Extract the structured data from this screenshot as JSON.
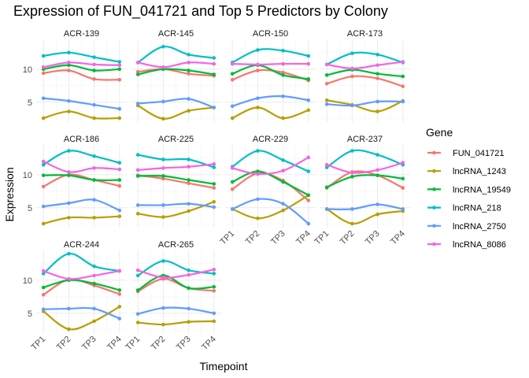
{
  "chart_data": {
    "type": "line",
    "title": "Expression of FUN_041721 and Top 5 Predictors by Colony",
    "xlabel": "Timepoint",
    "ylabel": "Expression",
    "x": [
      "TP1",
      "TP2",
      "TP3",
      "TP4"
    ],
    "y_ticks": [
      5,
      10
    ],
    "ylim": [
      2,
      14.5
    ],
    "legend_title": "Gene",
    "legend_position": "right",
    "grid": true,
    "genes": [
      {
        "name": "FUN_041721",
        "color": "#F8766D"
      },
      {
        "name": "lncRNA_1243",
        "color": "#B79F00"
      },
      {
        "name": "lncRNA_19549",
        "color": "#00BA38"
      },
      {
        "name": "lncRNA_218",
        "color": "#00BFC4"
      },
      {
        "name": "lncRNA_2750",
        "color": "#619CFF"
      },
      {
        "name": "lncRNA_8086",
        "color": "#F564E3"
      }
    ],
    "panels": [
      {
        "colony": "ACR-139",
        "values": {
          "FUN_041721": [
            9.4,
            9.8,
            8.5,
            8.4
          ],
          "lncRNA_1243": [
            2.6,
            3.6,
            2.6,
            2.6
          ],
          "lncRNA_19549": [
            10.0,
            10.6,
            9.8,
            10.0
          ],
          "lncRNA_218": [
            12.0,
            12.5,
            11.8,
            11.1
          ],
          "lncRNA_2750": [
            5.6,
            5.2,
            4.6,
            4.0
          ],
          "lncRNA_8086": [
            10.3,
            11.0,
            10.7,
            10.6
          ]
        }
      },
      {
        "colony": "ACR-145",
        "values": {
          "FUN_041721": [
            9.6,
            10.0,
            9.3,
            9.0
          ],
          "lncRNA_1243": [
            4.5,
            2.5,
            3.7,
            4.2
          ],
          "lncRNA_19549": [
            9.2,
            10.0,
            9.8,
            9.2
          ],
          "lncRNA_218": [
            11.0,
            13.4,
            12.2,
            11.7
          ],
          "lncRNA_2750": [
            4.8,
            5.1,
            5.5,
            4.2
          ],
          "lncRNA_8086": [
            11.0,
            10.3,
            11.0,
            10.8
          ]
        }
      },
      {
        "colony": "ACR-150",
        "values": {
          "FUN_041721": [
            8.4,
            9.8,
            9.5,
            8.3
          ],
          "lncRNA_1243": [
            2.6,
            4.2,
            2.6,
            3.8
          ],
          "lncRNA_19549": [
            9.3,
            10.6,
            9.1,
            8.5
          ],
          "lncRNA_218": [
            11.0,
            12.9,
            12.8,
            12.0
          ],
          "lncRNA_2750": [
            4.4,
            5.6,
            5.9,
            5.3
          ],
          "lncRNA_8086": [
            10.8,
            10.7,
            10.8,
            10.8
          ]
        }
      },
      {
        "colony": "ACR-173",
        "values": {
          "FUN_041721": [
            7.8,
            8.9,
            8.6,
            7.4
          ],
          "lncRNA_1243": [
            5.3,
            4.6,
            3.6,
            5.2
          ],
          "lncRNA_19549": [
            9.1,
            9.9,
            9.3,
            8.9
          ],
          "lncRNA_218": [
            10.7,
            12.4,
            12.2,
            11.0
          ],
          "lncRNA_2750": [
            4.7,
            4.5,
            5.1,
            5.1
          ],
          "lncRNA_8086": [
            10.7,
            10.1,
            10.6,
            11.1
          ]
        }
      },
      {
        "colony": "ACR-186",
        "values": {
          "FUN_041721": [
            8.2,
            10.0,
            9.2,
            8.3
          ],
          "lncRNA_1243": [
            2.6,
            3.5,
            3.5,
            3.7
          ],
          "lncRNA_19549": [
            9.9,
            9.9,
            9.2,
            9.2
          ],
          "lncRNA_218": [
            11.5,
            13.6,
            12.8,
            11.8
          ],
          "lncRNA_2750": [
            5.2,
            5.7,
            6.2,
            4.6
          ],
          "lncRNA_8086": [
            12.0,
            10.4,
            11.0,
            10.8
          ]
        }
      },
      {
        "colony": "ACR-225",
        "values": {
          "FUN_041721": [
            9.9,
            9.4,
            8.7,
            8.0
          ],
          "lncRNA_1243": [
            4.1,
            3.6,
            4.5,
            5.9
          ],
          "lncRNA_19549": [
            9.8,
            9.8,
            9.2,
            8.6
          ],
          "lncRNA_218": [
            13.0,
            12.3,
            12.3,
            11.1
          ],
          "lncRNA_2750": [
            5.4,
            5.4,
            5.6,
            5.1
          ],
          "lncRNA_8086": [
            10.7,
            11.0,
            11.2,
            11.6
          ]
        }
      },
      {
        "colony": "ACR-229",
        "values": {
          "FUN_041721": [
            7.8,
            10.2,
            9.1,
            6.1
          ],
          "lncRNA_1243": [
            4.8,
            3.4,
            4.6,
            6.9
          ],
          "lncRNA_19549": [
            8.9,
            10.5,
            8.9,
            6.9
          ],
          "lncRNA_218": [
            11.2,
            13.6,
            12.2,
            10.5
          ],
          "lncRNA_2750": [
            4.8,
            6.3,
            5.6,
            2.6
          ],
          "lncRNA_8086": [
            11.0,
            10.1,
            10.6,
            12.6
          ]
        }
      },
      {
        "colony": "ACR-237",
        "values": {
          "FUN_041721": [
            8.0,
            10.4,
            9.9,
            8.0
          ],
          "lncRNA_1243": [
            4.8,
            2.6,
            4.0,
            4.5
          ],
          "lncRNA_19549": [
            8.1,
            9.7,
            9.9,
            9.4
          ],
          "lncRNA_218": [
            11.1,
            13.6,
            13.0,
            11.5
          ],
          "lncRNA_2750": [
            4.8,
            4.8,
            5.5,
            4.8
          ],
          "lncRNA_8086": [
            11.5,
            10.3,
            10.7,
            11.8
          ]
        }
      },
      {
        "colony": "ACR-244",
        "values": {
          "FUN_041721": [
            7.8,
            10.1,
            9.2,
            7.9
          ],
          "lncRNA_1243": [
            5.3,
            2.6,
            3.8,
            6.0
          ],
          "lncRNA_19549": [
            8.9,
            10.0,
            9.5,
            8.5
          ],
          "lncRNA_218": [
            11.0,
            14.0,
            12.1,
            11.4
          ],
          "lncRNA_2750": [
            5.6,
            5.7,
            5.7,
            4.2
          ],
          "lncRNA_8086": [
            11.4,
            10.2,
            10.7,
            11.4
          ]
        }
      },
      {
        "colony": "ACR-265",
        "values": {
          "FUN_041721": [
            8.3,
            10.2,
            8.8,
            8.4
          ],
          "lncRNA_1243": [
            3.6,
            3.3,
            3.7,
            3.8
          ],
          "lncRNA_19549": [
            8.5,
            10.7,
            8.8,
            9.0
          ],
          "lncRNA_218": [
            10.7,
            12.9,
            11.5,
            11.0
          ],
          "lncRNA_2750": [
            4.9,
            5.8,
            5.7,
            5.0
          ],
          "lncRNA_8086": [
            11.5,
            10.4,
            10.8,
            11.6
          ]
        }
      }
    ]
  }
}
